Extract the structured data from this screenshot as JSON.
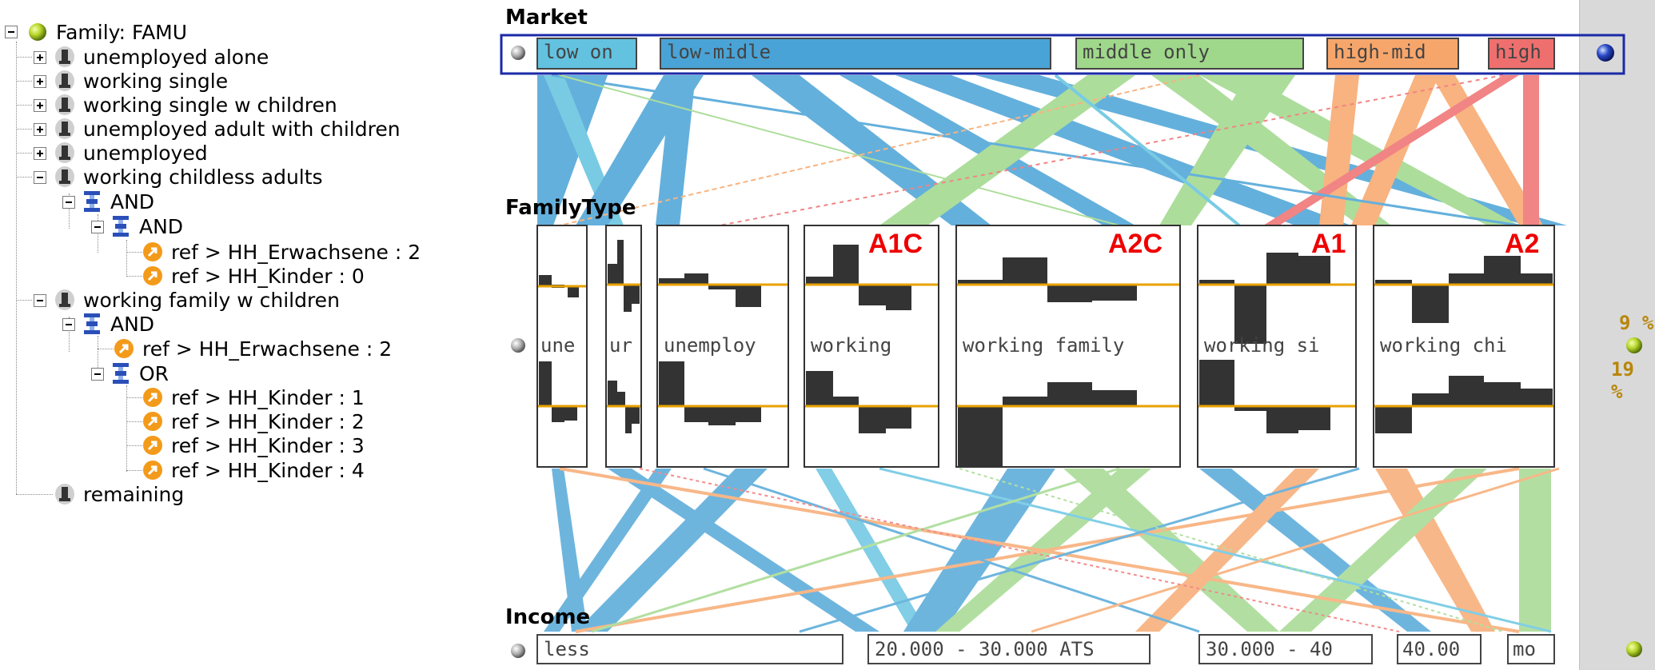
{
  "tree": {
    "root": "Family: FAMU",
    "nodes": [
      {
        "label": "unemployed alone"
      },
      {
        "label": "working single"
      },
      {
        "label": "working single w children"
      },
      {
        "label": "unemployed adult with children"
      },
      {
        "label": "unemployed"
      },
      {
        "label": "working childless adults"
      },
      {
        "label": "AND"
      },
      {
        "label": "AND"
      },
      {
        "label": "ref > HH_Erwachsene : 2"
      },
      {
        "label": "ref > HH_Kinder : 0"
      },
      {
        "label": "working family w children"
      },
      {
        "label": "AND"
      },
      {
        "label": "ref > HH_Erwachsene : 2"
      },
      {
        "label": "OR"
      },
      {
        "label": "ref > HH_Kinder : 1"
      },
      {
        "label": "ref > HH_Kinder : 2"
      },
      {
        "label": "ref > HH_Kinder : 3"
      },
      {
        "label": "ref > HH_Kinder : 4"
      },
      {
        "label": "remaining"
      }
    ]
  },
  "market": {
    "title": "Market",
    "categories": [
      "low on",
      "low-midle",
      "middle only",
      "high-mid",
      "high"
    ]
  },
  "familytype": {
    "title": "FamilyType",
    "panels": [
      {
        "label": "une",
        "tag": ""
      },
      {
        "label": "ur",
        "tag": ""
      },
      {
        "label": "unemploy",
        "tag": ""
      },
      {
        "label": "working",
        "tag": "A1C"
      },
      {
        "label": "working family",
        "tag": "A2C"
      },
      {
        "label": "working si",
        "tag": "A1"
      },
      {
        "label": "working chi",
        "tag": "A2"
      }
    ]
  },
  "income": {
    "title": "Income",
    "categories": [
      "less",
      "20.000 - 30.000 ATS",
      "30.000 - 40",
      "40.00",
      "mo"
    ]
  },
  "percent": {
    "top": "9 %",
    "bottom": "19 %"
  },
  "colors": {
    "blue": "#4aa3d6",
    "lightblue": "#62c2e0",
    "green": "#9fd88a",
    "orange": "#f7a66b",
    "red": "#ef6f6f",
    "hist": "#333333",
    "baseline": "#e8a200",
    "tag": "#ee0000",
    "selection": "#1b2aa8"
  }
}
